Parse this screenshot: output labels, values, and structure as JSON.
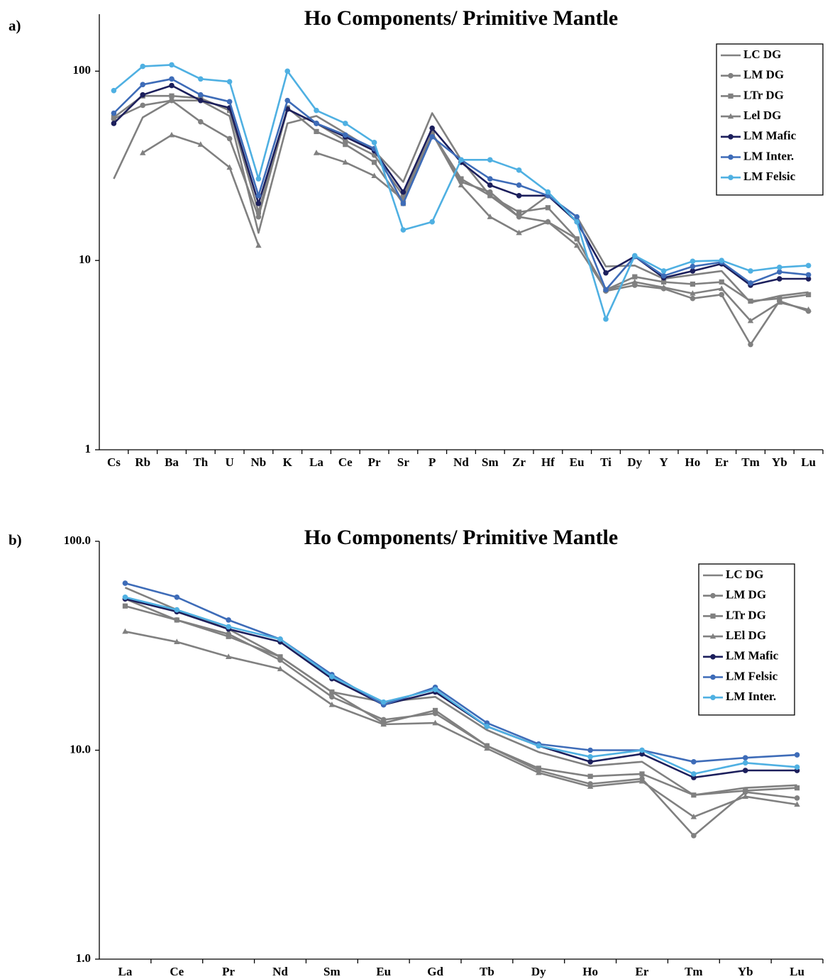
{
  "chart_data": [
    {
      "type": "line",
      "label": "a)",
      "title": "Ho Components/ Primitive Mantle",
      "log_scale": true,
      "legend": "upper right",
      "categories": [
        "Cs",
        "Rb",
        "Ba",
        "Th",
        "U",
        "Nb",
        "K",
        "La",
        "Ce",
        "Pr",
        "Sr",
        "P",
        "Nd",
        "Sm",
        "Zr",
        "Hf",
        "Eu",
        "Ti",
        "Dy",
        "Y",
        "Ho",
        "Er",
        "Tm",
        "Yb",
        "Lu"
      ],
      "ylim": [
        1,
        200
      ],
      "yticks": [
        1,
        10,
        100
      ],
      "series": [
        {
          "name": "LC DG",
          "color": "#808080",
          "values": [
            27,
            57,
            70,
            70,
            58,
            14,
            53,
            58,
            47,
            38,
            26,
            60,
            34,
            22,
            17,
            22,
            17,
            9.3,
            9.4,
            8,
            8.4,
            8.8,
            6,
            6.5,
            6.8
          ]
        },
        {
          "name": "LM DG",
          "color": "#808080",
          "marker": "circle",
          "values": [
            56,
            66,
            70,
            54,
            44,
            17,
            63,
            53,
            43,
            36,
            22,
            47,
            26,
            23,
            17,
            16,
            13,
            6.9,
            7.4,
            7.1,
            6.3,
            6.6,
            3.6,
            6.1,
            5.4
          ]
        },
        {
          "name": "LTr DG",
          "color": "#808080",
          "marker": "square",
          "values": [
            57,
            74,
            74,
            72,
            62,
            18,
            64,
            48,
            41,
            33,
            20,
            47,
            27,
            22,
            18,
            19,
            13,
            7,
            8.2,
            7.7,
            7.5,
            7.7,
            6.1,
            6.3,
            6.6
          ]
        },
        {
          "name": "Lel DG",
          "color": "#808080",
          "marker": "triangle",
          "values": [
            null,
            37,
            46,
            41,
            31,
            12,
            null,
            37,
            33,
            28,
            21,
            47,
            25,
            17,
            14,
            16,
            12,
            7,
            7.7,
            7.2,
            6.7,
            7.1,
            4.8,
            6,
            5.5
          ]
        },
        {
          "name": "LM Mafic",
          "color": "#1c1f5c",
          "marker": "circle",
          "values": [
            53,
            75,
            84,
            70,
            64,
            20,
            63,
            53,
            45,
            38,
            23,
            50,
            33,
            25,
            22,
            22,
            16,
            8.6,
            10.5,
            8.1,
            8.8,
            9.6,
            7.4,
            8,
            8
          ]
        },
        {
          "name": "LM Inter.",
          "color": "#3e6cb8",
          "marker": "circle",
          "values": [
            60,
            85,
            91,
            75,
            69,
            22,
            70,
            53,
            46,
            39,
            20,
            45,
            34,
            27,
            25,
            22,
            17,
            7,
            10.5,
            8.3,
            9.3,
            9.8,
            7.6,
            8.7,
            8.4
          ]
        },
        {
          "name": "LM Felsic",
          "color": "#4fb0e2",
          "marker": "circle",
          "values": [
            79,
            106,
            108,
            91,
            88,
            27,
            100,
            62,
            53,
            42,
            14.5,
            16,
            34,
            34,
            30,
            23,
            16,
            4.9,
            10.6,
            8.8,
            9.9,
            10,
            8.8,
            9.2,
            9.4
          ]
        }
      ]
    },
    {
      "type": "line",
      "label": "b)",
      "title": "Ho Components/ Primitive Mantle",
      "log_scale": true,
      "legend": "upper right",
      "categories": [
        "La",
        "Ce",
        "Pr",
        "Nd",
        "Sm",
        "Eu",
        "Gd",
        "Tb",
        "Dy",
        "Ho",
        "Er",
        "Tm",
        "Yb",
        "Lu"
      ],
      "ylim": [
        1,
        100
      ],
      "yticks": [
        {
          "value": 1,
          "label": "1.0"
        },
        {
          "value": 10,
          "label": "10.0"
        },
        {
          "value": 100,
          "label": "100.0"
        }
      ],
      "series": [
        {
          "name": "LC DG",
          "color": "#808080",
          "values": [
            60,
            47,
            38,
            28,
            19,
            17,
            18,
            12.5,
            9.8,
            8.4,
            8.8,
            6.1,
            6.6,
            6.8
          ]
        },
        {
          "name": "LM DG",
          "color": "#808080",
          "marker": "circle",
          "values": [
            53,
            42,
            36,
            27,
            18,
            14,
            15,
            10.5,
            8,
            6.9,
            7.3,
            3.9,
            6.3,
            5.9
          ]
        },
        {
          "name": "LTr DG",
          "color": "#808080",
          "marker": "square",
          "values": [
            49,
            42,
            35,
            28,
            19,
            13.5,
            15.5,
            10.5,
            8.2,
            7.5,
            7.7,
            6.1,
            6.4,
            6.6
          ]
        },
        {
          "name": "LEl DG",
          "color": "#808080",
          "marker": "triangle",
          "values": [
            37,
            33,
            28,
            24.5,
            16.5,
            13.3,
            13.5,
            10.2,
            7.8,
            6.7,
            7.1,
            4.8,
            6,
            5.5
          ]
        },
        {
          "name": "LM Mafic",
          "color": "#1c1f5c",
          "marker": "circle",
          "values": [
            53,
            46,
            38,
            33,
            22,
            16.5,
            19,
            13,
            10.5,
            8.8,
            9.6,
            7.4,
            8,
            8
          ]
        },
        {
          "name": "LM Felsic",
          "color": "#3e6cb8",
          "marker": "circle",
          "values": [
            63,
            54,
            42,
            34,
            23,
            16.5,
            20,
            13.5,
            10.7,
            10,
            10,
            8.8,
            9.2,
            9.5
          ]
        },
        {
          "name": "LM Inter.",
          "color": "#4fb0e2",
          "marker": "circle",
          "values": [
            54,
            47,
            39,
            34,
            22.5,
            17,
            19.5,
            13,
            10.5,
            9.3,
            10,
            7.7,
            8.7,
            8.3
          ]
        }
      ]
    }
  ]
}
